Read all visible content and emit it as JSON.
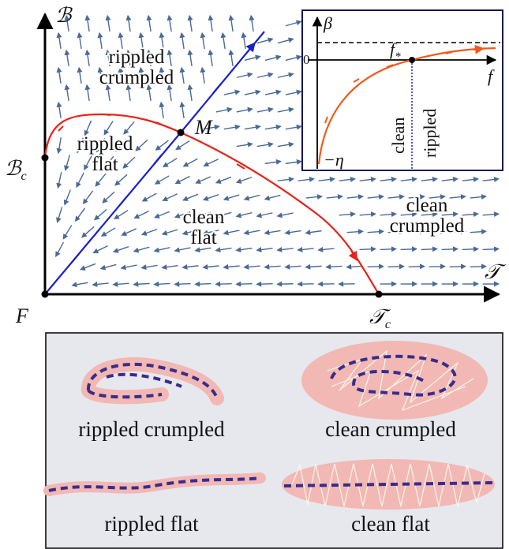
{
  "main_plot": {
    "y_axis_label": "ℬ",
    "x_axis_label": "𝒯",
    "origin_label": "F",
    "b_critical": {
      "symbol": "ℬ",
      "subscript": "c"
    },
    "t_critical": {
      "symbol": "𝒯",
      "subscript": "c"
    },
    "fixed_point_label": "M",
    "regions": [
      {
        "lines": [
          "rippled",
          "crumpled"
        ]
      },
      {
        "lines": [
          "rippled",
          "flat"
        ]
      },
      {
        "lines": [
          "clean",
          "flat"
        ]
      },
      {
        "lines": [
          "clean",
          "crumpled"
        ]
      }
    ]
  },
  "inset": {
    "y_axis_label": "β",
    "x_axis_label": "f",
    "fixed_value": {
      "symbol": "f",
      "subscript": "*"
    },
    "zero_label": "0",
    "bottom_label": "−η",
    "left_phase": "clean",
    "right_phase": "rippled"
  },
  "phases_panel": {
    "labels": [
      "rippled crumpled",
      "clean crumpled",
      "rippled flat",
      "clean flat"
    ]
  }
}
